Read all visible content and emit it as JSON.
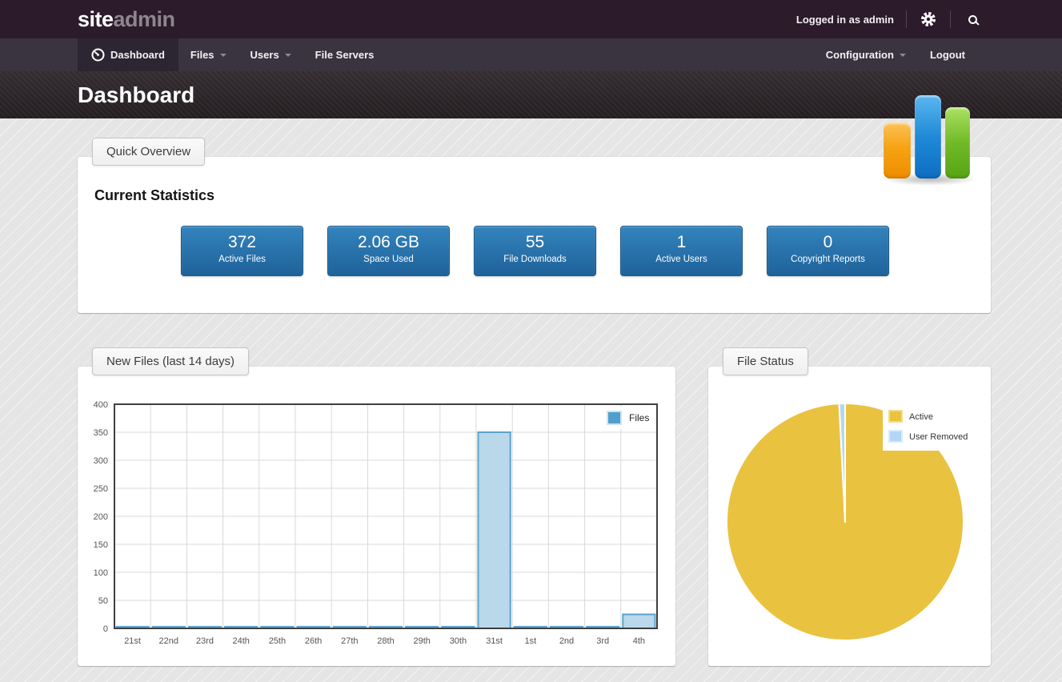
{
  "topbar": {
    "brand_site": "site",
    "brand_admin": "admin",
    "logged_in_text": "Logged in as admin"
  },
  "nav": {
    "items": [
      {
        "label": "Dashboard",
        "active": true,
        "has_caret": false
      },
      {
        "label": "Files",
        "active": false,
        "has_caret": true
      },
      {
        "label": "Users",
        "active": false,
        "has_caret": true
      },
      {
        "label": "File Servers",
        "active": false,
        "has_caret": false
      }
    ],
    "right_items": [
      {
        "label": "Configuration",
        "has_caret": true
      },
      {
        "label": "Logout",
        "has_caret": false
      }
    ]
  },
  "page": {
    "title": "Dashboard"
  },
  "overview": {
    "tab_label": "Quick Overview",
    "heading": "Current Statistics",
    "stats": [
      {
        "value": "372",
        "label": "Active Files"
      },
      {
        "value": "2.06 GB",
        "label": "Space Used"
      },
      {
        "value": "55",
        "label": "File Downloads"
      },
      {
        "value": "1",
        "label": "Active Users"
      },
      {
        "value": "0",
        "label": "Copyright Reports"
      }
    ]
  },
  "panels": {
    "files_tab_label": "New Files (last 14 days)",
    "status_tab_label": "File Status"
  },
  "colors": {
    "stat_box_top": "#3484be",
    "stat_box_bottom": "#1f639a",
    "topbar_bg": "#2c1b2a",
    "navbar_bg": "#3a3340"
  },
  "chart_data": [
    {
      "type": "bar",
      "title": "New Files (last 14 days)",
      "categories": [
        "21st",
        "22nd",
        "23rd",
        "24th",
        "25th",
        "26th",
        "27th",
        "28th",
        "29th",
        "30th",
        "31st",
        "1st",
        "2nd",
        "3rd",
        "4th"
      ],
      "series": [
        {
          "name": "Files",
          "values": [
            3,
            3,
            3,
            3,
            3,
            3,
            3,
            3,
            3,
            3,
            350,
            3,
            3,
            3,
            25
          ]
        }
      ],
      "xlabel": "",
      "ylabel": "",
      "ylim": [
        0,
        400
      ],
      "ytick_step": 50,
      "grid": true,
      "legend_position": "top-right",
      "bar_fill": "#b9d8ea",
      "bar_stroke": "#5ba3cf",
      "legend_swatch_fill": "#4f9fcf",
      "legend_swatch_stroke": "#cfe3f2",
      "axis_color": "#3f3f3f",
      "grid_color": "#d9d9d9",
      "tick_label_color": "#555555"
    },
    {
      "type": "pie",
      "title": "File Status",
      "labels": [
        "Active",
        "User Removed"
      ],
      "values_pct": [
        99.2,
        0.8
      ],
      "colors": [
        "#e9c23f",
        "#b3d7f2"
      ],
      "legend_swatch_strokes": [
        "#f0dc96",
        "#d9eafb"
      ],
      "legend_position": "top-right"
    }
  ]
}
